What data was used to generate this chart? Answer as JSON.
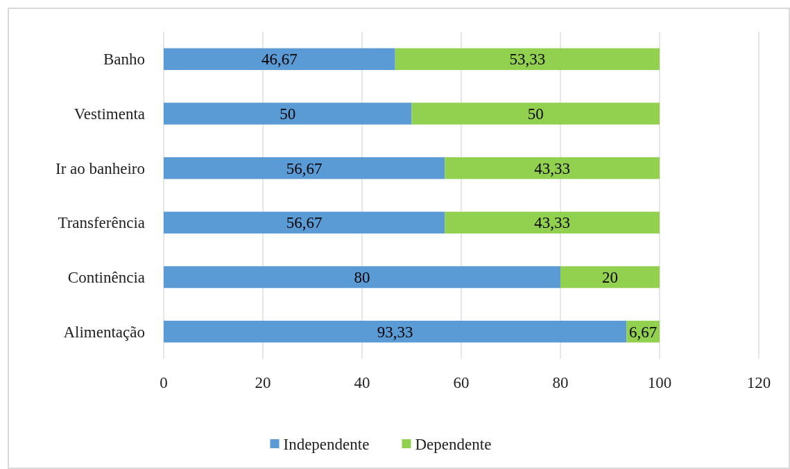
{
  "chart_data": {
    "type": "bar",
    "orientation": "horizontal",
    "stacked": true,
    "categories": [
      "Banho",
      "Vestimenta",
      "Ir ao banheiro",
      "Transferência",
      "Continência",
      "Alimentação"
    ],
    "series": [
      {
        "name": "Independente",
        "color": "#5b9bd5",
        "values": [
          46.67,
          50,
          56.67,
          56.67,
          80,
          93.33
        ],
        "value_labels": [
          "46,67",
          "50",
          "56,67",
          "56,67",
          "80",
          "93,33"
        ]
      },
      {
        "name": "Dependente",
        "color": "#92d050",
        "values": [
          53.33,
          50,
          43.33,
          43.33,
          20,
          6.67
        ],
        "value_labels": [
          "53,33",
          "50",
          "43,33",
          "43,33",
          "20",
          "6,67"
        ]
      }
    ],
    "xlim": [
      0,
      120
    ],
    "xticks": [
      0,
      20,
      40,
      60,
      80,
      100,
      120
    ],
    "grid": "x",
    "legend": "bottom"
  }
}
